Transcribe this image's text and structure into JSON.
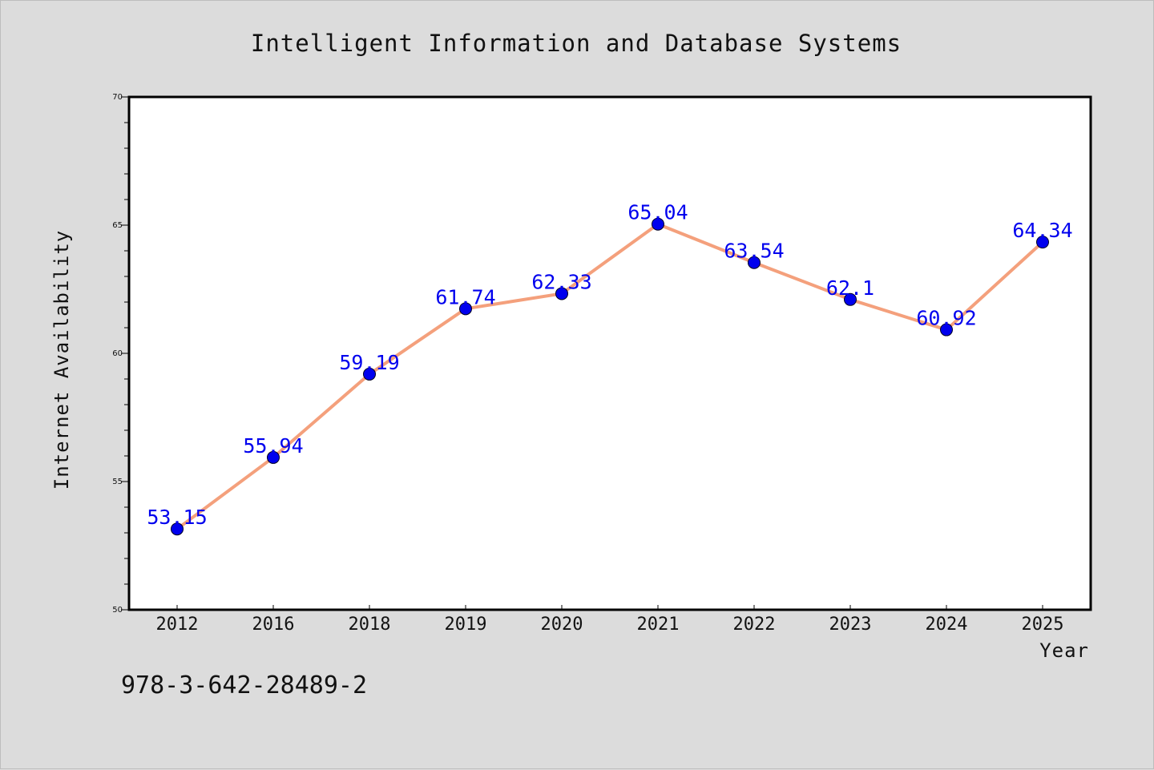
{
  "figure": {
    "footer": "978-3-642-28489-2",
    "colors": {
      "background": "#dcdcdc",
      "plot_area": "#ffffff",
      "line": "#f4a07c",
      "marker": "#0000ee",
      "data_label": "#0000ee"
    }
  },
  "chart_data": {
    "type": "line",
    "title": "Intelligent Information and Database Systems",
    "xlabel": "Year",
    "ylabel": "Internet Availability",
    "categories": [
      "2012",
      "2016",
      "2018",
      "2019",
      "2020",
      "2021",
      "2022",
      "2023",
      "2024",
      "2025"
    ],
    "series": [
      {
        "values": [
          53.15,
          55.94,
          59.19,
          61.74,
          62.33,
          65.04,
          63.54,
          62.1,
          60.92,
          64.34
        ]
      }
    ],
    "data_labels": [
      "53.15",
      "55.94",
      "59.19",
      "61.74",
      "62.33",
      "65.04",
      "63.54",
      "62.1",
      "60.92",
      "64.34"
    ],
    "ylim": [
      50,
      70
    ],
    "yticks": [
      50,
      55,
      60,
      65,
      70
    ],
    "grid": false,
    "legend": "none"
  }
}
